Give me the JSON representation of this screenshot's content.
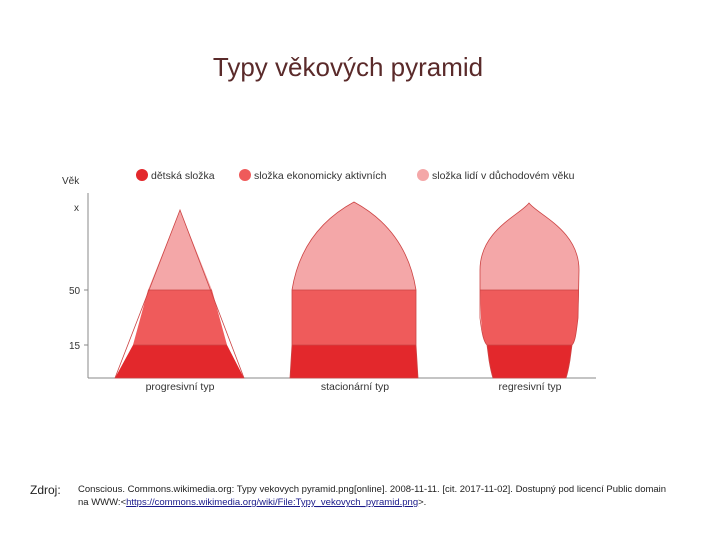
{
  "title": "Typy věkových pyramid",
  "diagram": {
    "axis_label": "Věk",
    "y_ticks": [
      "x",
      "50",
      "15"
    ],
    "legend": [
      {
        "label": "dětská složka",
        "color": "#e3282c"
      },
      {
        "label": "složka ekonomicky aktivních",
        "color": "#ef5b5b"
      },
      {
        "label": "složka lidí v důchodovém věku",
        "color": "#f4a7a8"
      }
    ],
    "pyramids": [
      {
        "label": "progresivní typ"
      },
      {
        "label": "stacionární typ"
      },
      {
        "label": "regresivní typ"
      }
    ]
  },
  "source": {
    "label": "Zdroj:",
    "text_before": "Conscious. Commons.wikimedia.org: Typy vekovych pyramid.png[online]. 2008-11-11. [cit. 2017-11-02]. Dostupný pod licencí Public domain na WWW:<",
    "link": "https://commons.wikimedia.org/wiki/File:Typy_vekovych_pyramid.png",
    "text_after": ">."
  }
}
